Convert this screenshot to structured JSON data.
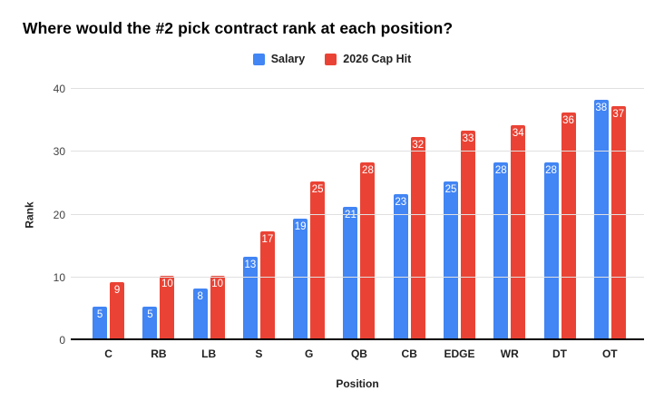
{
  "chart_data": {
    "type": "bar",
    "title": "Where would the #2 pick contract rank at each position?",
    "xlabel": "Position",
    "ylabel": "Rank",
    "categories": [
      "C",
      "RB",
      "LB",
      "S",
      "G",
      "QB",
      "CB",
      "EDGE",
      "WR",
      "DT",
      "OT"
    ],
    "series": [
      {
        "name": "Salary",
        "color": "#4285F4",
        "values": [
          5,
          5,
          8,
          13,
          19,
          21,
          23,
          25,
          28,
          28,
          38
        ]
      },
      {
        "name": "2026 Cap Hit",
        "color": "#EA4335",
        "values": [
          9,
          10,
          10,
          17,
          25,
          28,
          32,
          33,
          34,
          36,
          37
        ]
      }
    ],
    "ylim": [
      0,
      40
    ],
    "yticks": [
      0,
      10,
      20,
      30,
      40
    ],
    "grid": true,
    "legend_position": "top-center",
    "bar_labels": true,
    "colors": {
      "bar_label": "#FFFFFF",
      "gridline": "#E0E0E0",
      "axis_line": "#000000",
      "tick_label": "#424242",
      "text": "#212121",
      "background": "#FFFFFF"
    }
  }
}
